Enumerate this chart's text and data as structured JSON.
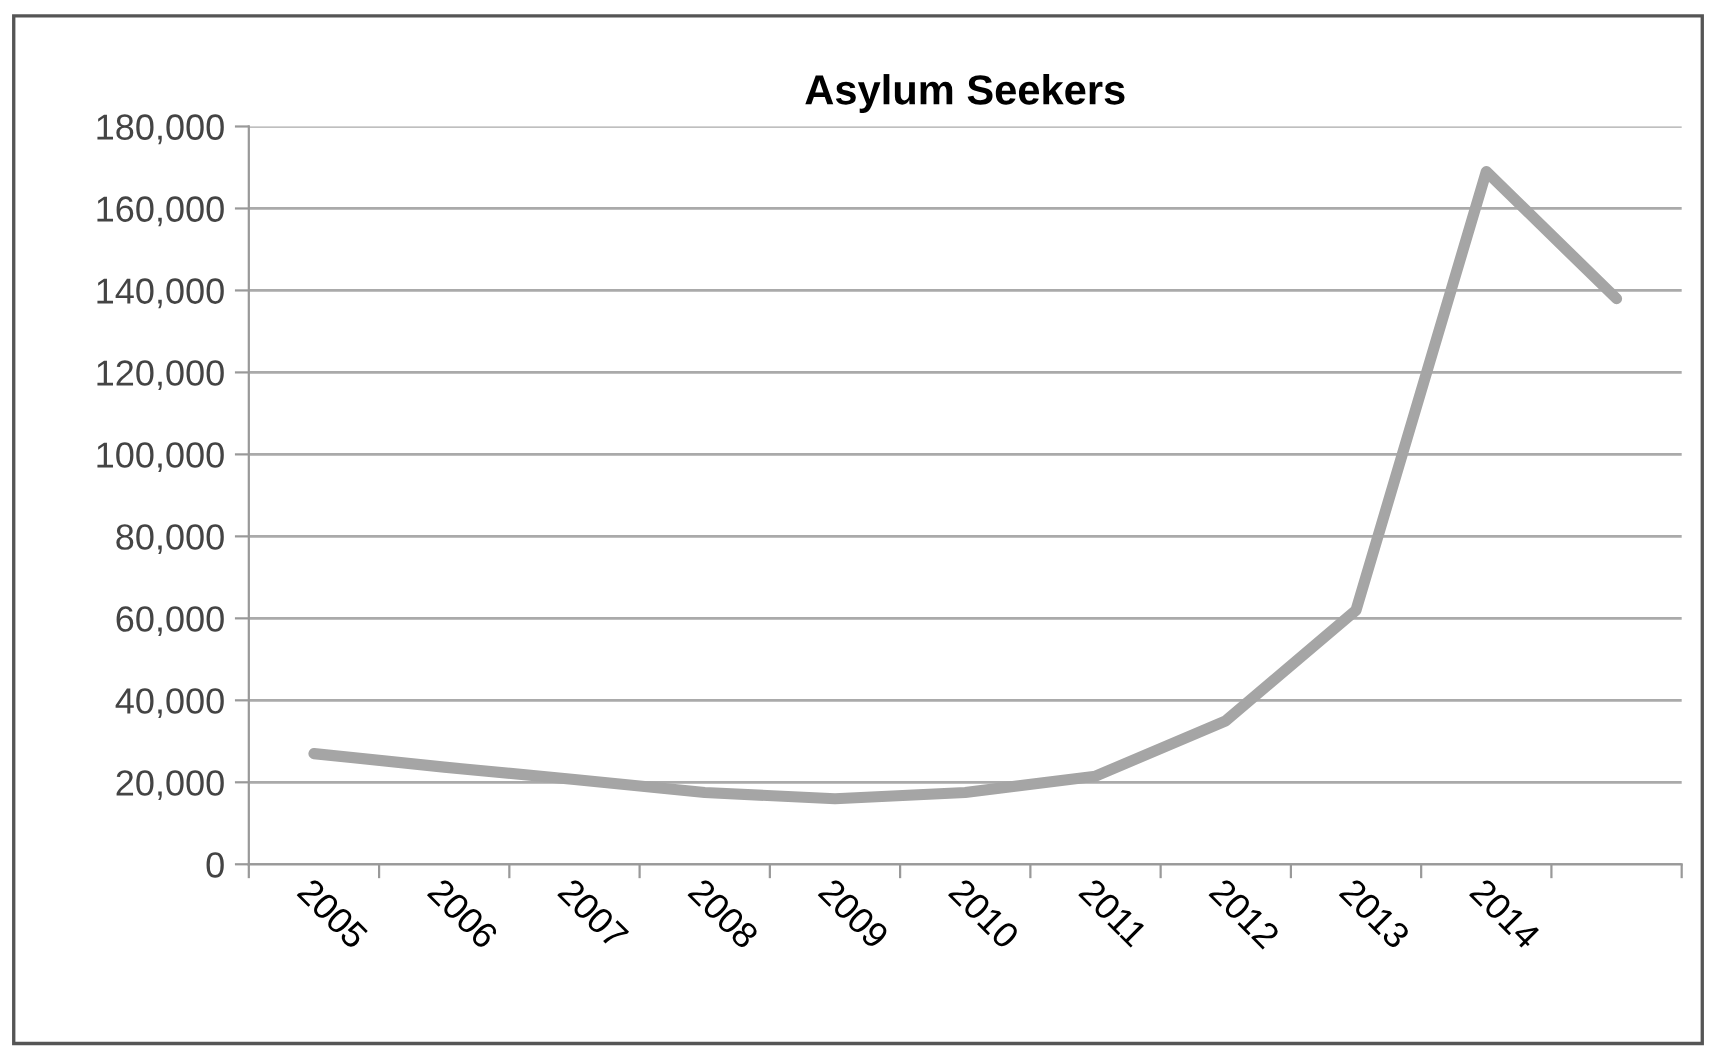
{
  "chart_data": {
    "type": "line",
    "title": "Asylum Seekers",
    "categories": [
      "2005",
      "2006",
      "2007",
      "2008",
      "2009",
      "2010",
      "2011",
      "2012",
      "2013",
      "2014",
      null
    ],
    "series": [
      {
        "color": "#a5a5a5",
        "values": [
          27000,
          23700,
          20700,
          17500,
          16000,
          17500,
          21500,
          35000,
          62000,
          169000,
          138000
        ]
      }
    ],
    "ylim": [
      0,
      180000
    ],
    "yticks": [
      {
        "value": 0,
        "label": "0"
      },
      {
        "value": 20000,
        "label": "20,000"
      },
      {
        "value": 40000,
        "label": "40,000"
      },
      {
        "value": 60000,
        "label": "60,000"
      },
      {
        "value": 80000,
        "label": "80,000"
      },
      {
        "value": 100000,
        "label": "100,000"
      },
      {
        "value": 120000,
        "label": "120,000"
      },
      {
        "value": 140000,
        "label": "140,000"
      },
      {
        "value": 160000,
        "label": "160,000"
      },
      {
        "value": 180000,
        "label": "180,000"
      }
    ],
    "grid": "y",
    "marker": "none",
    "line_style": "solid"
  }
}
